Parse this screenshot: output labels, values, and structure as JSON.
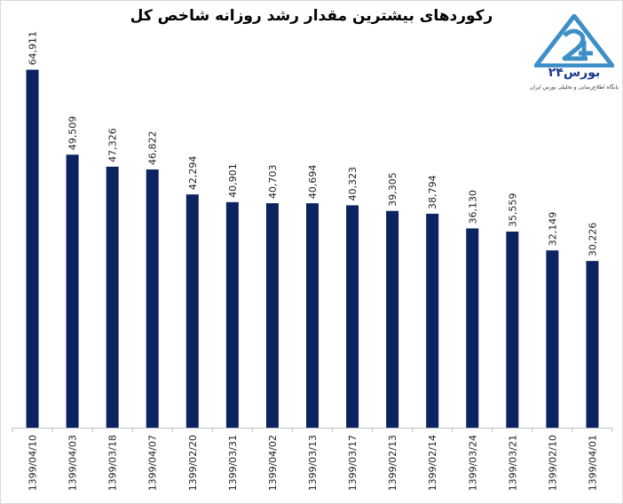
{
  "logo": {
    "brand_text": "بورس۲۴",
    "tagline": "پایگاه اطلاع‌رسانی و تحلیلی بورس ایران",
    "colors": {
      "primary": "#3d8fc7",
      "text": "#1b3a8c"
    }
  },
  "chart_data": {
    "type": "bar",
    "title": "رکوردهای بیشترین مقدار رشد روزانه شاخص کل",
    "xlabel": "",
    "ylabel": "",
    "categories": [
      "1399/04/10",
      "1399/04/03",
      "1399/03/18",
      "1399/04/07",
      "1399/02/20",
      "1399/03/31",
      "1399/04/02",
      "1399/03/13",
      "1399/03/17",
      "1399/02/13",
      "1399/02/14",
      "1399/03/24",
      "1399/03/21",
      "1399/02/10",
      "1399/04/01"
    ],
    "values": [
      64911,
      49509,
      47326,
      46822,
      42294,
      40901,
      40703,
      40694,
      40323,
      39305,
      38794,
      36130,
      35559,
      32149,
      30226
    ],
    "value_labels": [
      "64,911",
      "49,509",
      "47,326",
      "46,822",
      "42,294",
      "40,901",
      "40,703",
      "40,694",
      "40,323",
      "39,305",
      "38,794",
      "36,130",
      "35,559",
      "32,149",
      "30,226"
    ],
    "ylim": [
      0,
      65000
    ],
    "grid": false,
    "legend": "none",
    "bar_color": "#0b2461"
  }
}
